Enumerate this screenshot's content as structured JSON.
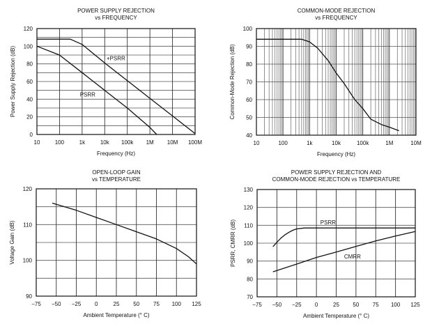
{
  "chart_data": [
    {
      "type": "line",
      "title": [
        "POWER SUPPLY REJECTION",
        "vs FREQUENCY"
      ],
      "xlabel": "Frequency (Hz)",
      "ylabel": "Power Supply Rejection (dB)",
      "xscale": "log",
      "xlim": [
        10,
        100000000
      ],
      "ylim": [
        0,
        120
      ],
      "xticks": [
        10,
        100,
        1000,
        10000,
        100000,
        1000000,
        10000000,
        100000000
      ],
      "xtick_labels": [
        "10",
        "100",
        "1k",
        "10k",
        "100k",
        "1M",
        "10M",
        "100M"
      ],
      "yticks": [
        0,
        20,
        40,
        60,
        80,
        100,
        120
      ],
      "ygrid_step": 10,
      "grid": true,
      "series": [
        {
          "name": "+PSRR",
          "x": [
            10,
            300,
            1000,
            10000,
            100000,
            1000000,
            10000000,
            100000000
          ],
          "y": [
            108,
            108,
            102,
            81,
            61,
            41,
            21,
            1
          ]
        },
        {
          "name": "PSRR",
          "x": [
            10,
            100,
            1000,
            10000,
            100000,
            1000000,
            2000000
          ],
          "y": [
            100,
            90,
            70,
            50,
            30,
            8,
            0
          ]
        }
      ],
      "annotations": [
        {
          "text": "+PSRR",
          "x": 12000,
          "y": 84
        },
        {
          "text": "PSRR",
          "x": 800,
          "y": 43
        }
      ]
    },
    {
      "type": "line",
      "title": [
        "COMMON-MODE REJECTION",
        "vs FREQUENCY"
      ],
      "xlabel": "Frequency (Hz)",
      "ylabel": "Common-Mode Rejection (dB)",
      "xscale": "log",
      "xlim": [
        10,
        10000000
      ],
      "ylim": [
        40,
        100
      ],
      "xticks": [
        10,
        100,
        1000,
        10000,
        100000,
        1000000,
        10000000
      ],
      "xtick_labels": [
        "10",
        "100",
        "1k",
        "10k",
        "100k",
        "1M",
        "10M"
      ],
      "yticks": [
        40,
        50,
        60,
        70,
        80,
        90,
        100
      ],
      "ygrid_step": 10,
      "minor_xgrid": true,
      "grid": true,
      "series": [
        {
          "name": "CMRR",
          "x": [
            10,
            500,
            1000,
            2000,
            5000,
            10000,
            20000,
            50000,
            100000,
            200000,
            500000,
            1000000,
            2300000
          ],
          "y": [
            94,
            94,
            92.5,
            89,
            82,
            75,
            69,
            60,
            55,
            49,
            46,
            44.5,
            42.5
          ]
        }
      ],
      "annotations": []
    },
    {
      "type": "line",
      "title": [
        "OPEN-LOOP GAIN",
        "vs TEMPERATURE"
      ],
      "xlabel": "Ambient Temperature (° C)",
      "ylabel": "Voltage Gain (dB)",
      "xscale": "linear",
      "xlim": [
        -75,
        125
      ],
      "ylim": [
        90,
        120
      ],
      "xticks": [
        -75,
        -50,
        -25,
        0,
        25,
        50,
        75,
        100,
        125
      ],
      "xtick_labels": [
        "−75",
        "−50",
        "−25",
        "0",
        "25",
        "50",
        "75",
        "100",
        "125"
      ],
      "yticks": [
        90,
        100,
        110,
        120
      ],
      "ygrid_step": 5,
      "grid": true,
      "series": [
        {
          "name": "Voltage Gain",
          "x": [
            -55,
            -25,
            0,
            25,
            50,
            75,
            100,
            115,
            125
          ],
          "y": [
            116,
            114,
            112,
            110,
            108,
            106,
            103.3,
            101,
            99
          ]
        }
      ],
      "annotations": []
    },
    {
      "type": "line",
      "title": [
        "POWER SUPPLY REJECTION AND",
        "COMMON-MODE REJECTION vs TEMPERATURE"
      ],
      "xlabel": "Ambient Temperature (° C)",
      "ylabel": "PSRR, CMRR (dB)",
      "xscale": "linear",
      "xlim": [
        -75,
        125
      ],
      "ylim": [
        70,
        130
      ],
      "xticks": [
        -75,
        -50,
        -25,
        0,
        25,
        50,
        75,
        100,
        125
      ],
      "xtick_labels": [
        "−75",
        "−50",
        "−25",
        "0",
        "25",
        "50",
        "75",
        "100",
        "125"
      ],
      "yticks": [
        70,
        80,
        90,
        100,
        110,
        120,
        130
      ],
      "ygrid_step": 10,
      "grid": true,
      "series": [
        {
          "name": "PSRR",
          "x": [
            -55,
            -50,
            -45,
            -40,
            -35,
            -30,
            -25,
            -15,
            125
          ],
          "y": [
            98,
            100.5,
            102.8,
            104.6,
            106,
            107.2,
            108,
            108.5,
            108.5
          ]
        },
        {
          "name": "CMRR",
          "x": [
            -55,
            -25,
            0,
            25,
            50,
            75,
            100,
            125
          ],
          "y": [
            84,
            88.3,
            92,
            95,
            98.2,
            101.3,
            104,
            106.5
          ]
        }
      ],
      "annotations": [
        {
          "text": "PSRR",
          "x": 5,
          "y": 110.5
        },
        {
          "text": "CMRR",
          "x": 35,
          "y": 91.5
        }
      ]
    }
  ]
}
